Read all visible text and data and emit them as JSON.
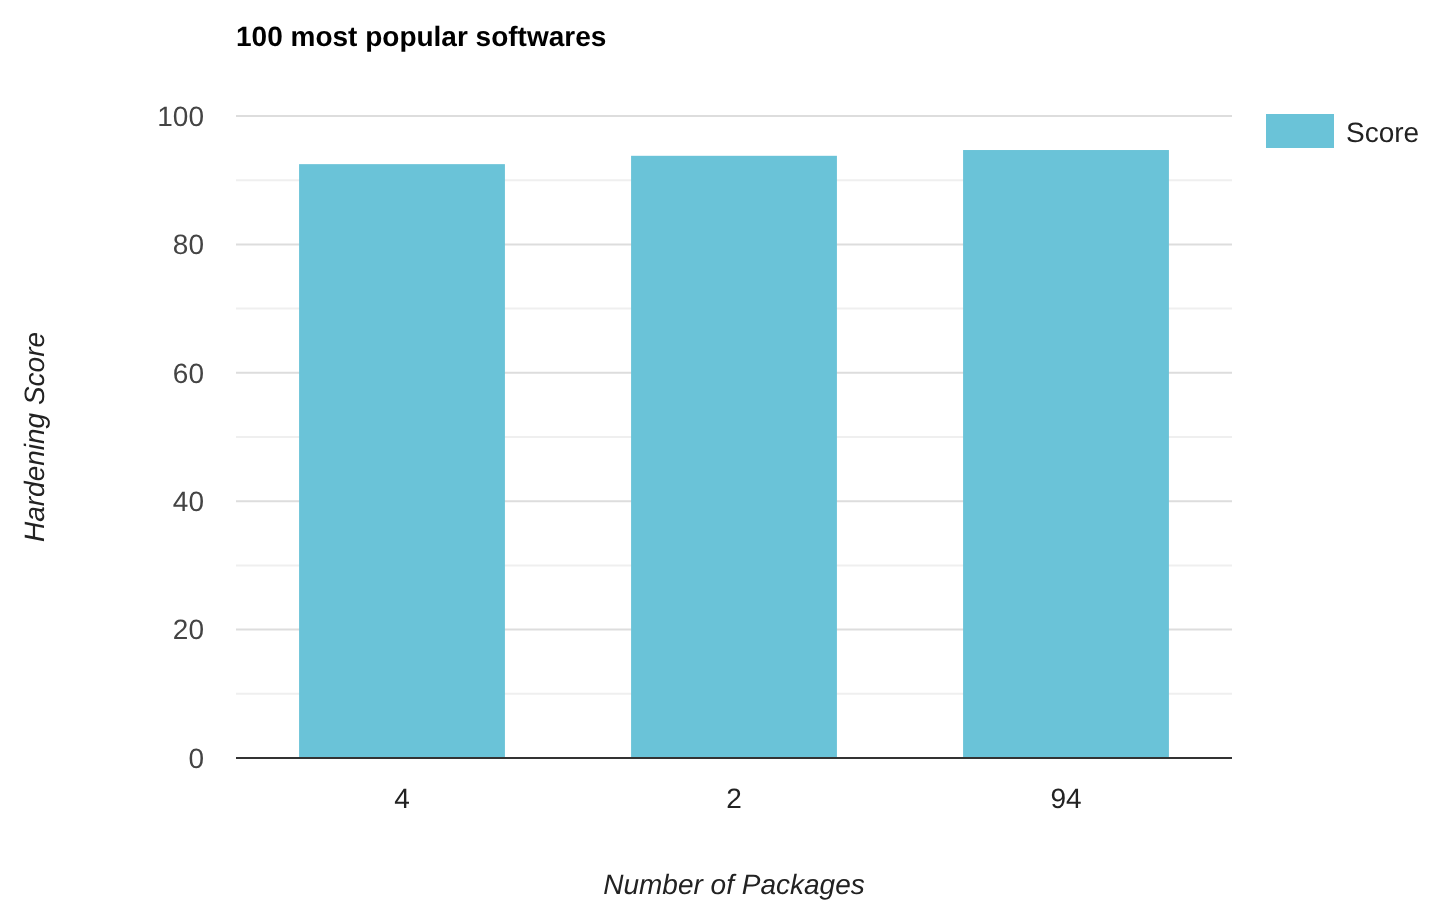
{
  "chart_data": {
    "type": "bar",
    "title": "100 most popular softwares",
    "xlabel": "Number of Packages",
    "ylabel": "Hardening Score",
    "categories": [
      "4",
      "2",
      "94"
    ],
    "series": [
      {
        "name": "Score",
        "color": "#6ac3d8",
        "values": [
          92.5,
          93.8,
          94.7
        ]
      }
    ],
    "ylim": [
      0,
      100
    ],
    "yticks": [
      0,
      {
        "value": 10,
        "label": null
      },
      20,
      {
        "value": 30,
        "label": null
      },
      40,
      {
        "value": 50,
        "label": null
      },
      60,
      {
        "value": 70,
        "label": null
      },
      80,
      {
        "value": 90,
        "label": null
      },
      100
    ],
    "grid": "y",
    "legend": "top right"
  }
}
